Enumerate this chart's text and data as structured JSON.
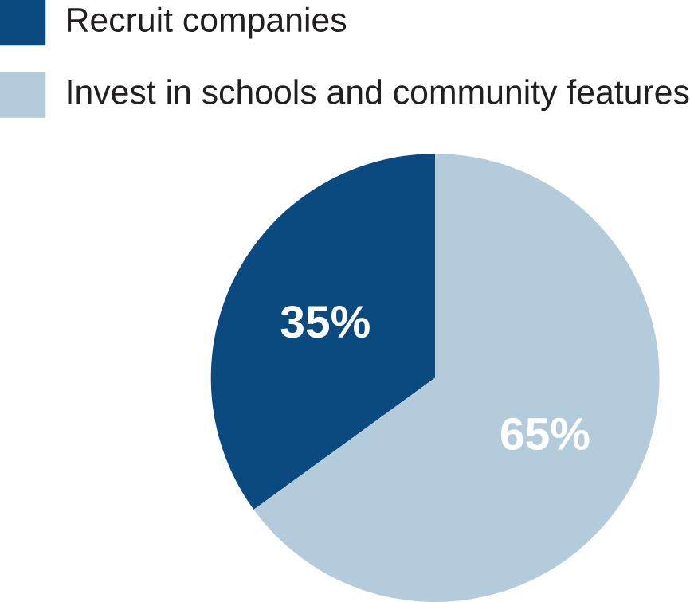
{
  "chart_data": {
    "type": "pie",
    "categories": [
      "Recruit companies",
      "Invest in schools and community features"
    ],
    "values": [
      35,
      65
    ],
    "value_labels": [
      "35%",
      "65%"
    ],
    "colors": [
      "#0b4a7e",
      "#b4cbdb"
    ],
    "legend": "top left"
  }
}
